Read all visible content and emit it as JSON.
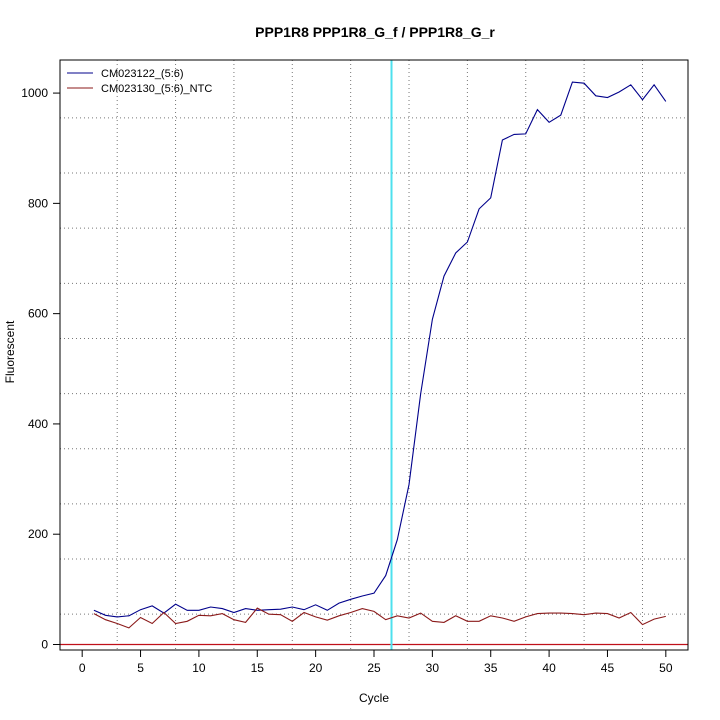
{
  "chart_data": {
    "type": "line",
    "title": "PPP1R8  PPP1R8_G_f / PPP1R8_G_r",
    "xlabel": "Cycle",
    "ylabel": "Fluorescent",
    "xlim": [
      -1.9,
      51.9
    ],
    "ylim": [
      -10,
      1060
    ],
    "x_ticks": [
      0,
      5,
      10,
      15,
      20,
      25,
      30,
      35,
      40,
      45,
      50
    ],
    "y_ticks": [
      0,
      200,
      400,
      600,
      800,
      1000
    ],
    "x_tick_labels": [
      "0",
      "5",
      "10",
      "15",
      "20",
      "25",
      "30",
      "35",
      "40",
      "45",
      "50"
    ],
    "y_tick_labels": [
      "0",
      "200",
      "400",
      "600",
      "800",
      "1000"
    ],
    "x_grid": [
      3,
      8,
      13,
      18,
      23,
      28,
      33,
      38,
      43,
      48
    ],
    "y_grid": [
      55,
      155,
      255,
      355,
      455,
      555,
      655,
      755,
      855,
      955
    ],
    "grid": true,
    "legend_position": "top-left",
    "threshold_line": {
      "x": 26.5,
      "color": "#4ee0ee"
    },
    "baseline": {
      "y": 0,
      "color": "#c0101a"
    },
    "series": [
      {
        "name": "CM023122_(5:6)",
        "color": "#00008b",
        "x": [
          1,
          2,
          3,
          4,
          5,
          6,
          7,
          8,
          9,
          10,
          11,
          12,
          13,
          14,
          15,
          16,
          17,
          18,
          19,
          20,
          21,
          22,
          23,
          24,
          25,
          26,
          27,
          28,
          29,
          30,
          31,
          32,
          33,
          34,
          35,
          36,
          37,
          38,
          39,
          40,
          41,
          42,
          43,
          44,
          45,
          46,
          47,
          48,
          49,
          50
        ],
        "values": [
          62,
          53,
          50,
          52,
          63,
          70,
          57,
          73,
          62,
          62,
          68,
          65,
          58,
          65,
          62,
          63,
          64,
          68,
          63,
          72,
          62,
          75,
          82,
          88,
          93,
          125,
          190,
          290,
          455,
          590,
          668,
          710,
          730,
          790,
          810,
          915,
          925,
          926,
          970,
          947,
          960,
          1020,
          1018,
          995,
          992,
          1002,
          1015,
          988,
          1015,
          985
        ]
      },
      {
        "name": "CM023130_(5:6)_NTC",
        "color": "#8b1a1a",
        "x": [
          1,
          2,
          3,
          4,
          5,
          6,
          7,
          8,
          9,
          10,
          11,
          12,
          13,
          14,
          15,
          16,
          17,
          18,
          19,
          20,
          21,
          22,
          23,
          24,
          25,
          26,
          27,
          28,
          29,
          30,
          31,
          32,
          33,
          34,
          35,
          36,
          37,
          38,
          39,
          40,
          41,
          42,
          43,
          44,
          45,
          46,
          47,
          48,
          49,
          50
        ],
        "values": [
          56,
          45,
          38,
          30,
          49,
          38,
          58,
          38,
          42,
          53,
          52,
          56,
          45,
          40,
          66,
          55,
          54,
          42,
          58,
          50,
          44,
          52,
          58,
          65,
          60,
          45,
          52,
          48,
          57,
          42,
          40,
          52,
          42,
          42,
          52,
          48,
          42,
          50,
          56,
          57,
          57,
          56,
          54,
          57,
          56,
          48,
          58,
          36,
          46,
          51
        ]
      }
    ]
  }
}
